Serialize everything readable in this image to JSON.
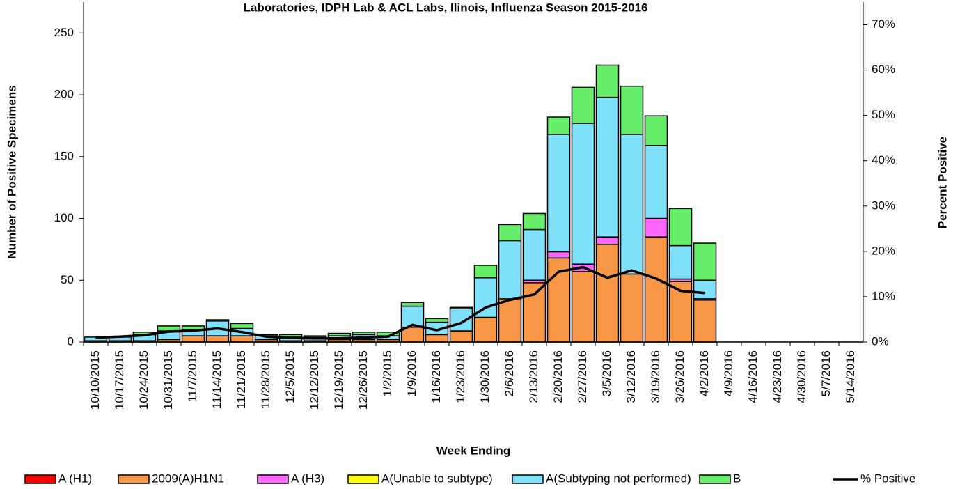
{
  "chart_data": {
    "type": "bar",
    "stacked": true,
    "title": "Laboratories, IDPH Lab & ACL Labs, Ilinois, Influenza Season 2015-2016",
    "x_label": "Week Ending",
    "y_label": "Number of  Positive Specimens",
    "y2_label": "Percent Positive",
    "categories": [
      "10/10/2015",
      "10/17/2015",
      "10/24/2015",
      "10/31/2015",
      "11/7/2015",
      "11/14/2015",
      "11/21/2015",
      "11/28/2015",
      "12/5/2015",
      "12/12/2015",
      "12/19/2015",
      "12/26/2015",
      "1/2/2015",
      "1/9/2016",
      "1/16/2016",
      "1/23/2016",
      "1/30/2016",
      "2/6/2016",
      "2/13/2016",
      "2/20/2016",
      "2/27/2016",
      "3/5/2016",
      "3/12/2016",
      "3/19/2016",
      "3/26/2016",
      "4/2/2016",
      "4/9/2016",
      "4/16/2016",
      "4/23/2016",
      "4/30/2016",
      "5/7/2016",
      "5/14/2016"
    ],
    "ylim": [
      0,
      275
    ],
    "yticks": [
      0,
      50,
      100,
      150,
      200,
      250
    ],
    "y2lim": [
      0,
      75
    ],
    "y2ticks": [
      {
        "value": 0,
        "label": "0%"
      },
      {
        "value": 10,
        "label": "10%"
      },
      {
        "value": 20,
        "label": "20%"
      },
      {
        "value": 30,
        "label": "30%"
      },
      {
        "value": 40,
        "label": "40%"
      },
      {
        "value": 50,
        "label": "50%"
      },
      {
        "value": 60,
        "label": "60%"
      },
      {
        "value": 70,
        "label": "70%"
      }
    ],
    "legend": "bottom",
    "series": [
      {
        "name": "A (H1)",
        "color": "#ff0000",
        "values": [
          0,
          0,
          0,
          0,
          0,
          0,
          0,
          0,
          0,
          0,
          0,
          0,
          0,
          0,
          0,
          0,
          0,
          0,
          0,
          0,
          0,
          0,
          0,
          0,
          0,
          0,
          0,
          0,
          0,
          0,
          0,
          0
        ]
      },
      {
        "name": "2009(A)H1N1",
        "color": "#f79646",
        "values": [
          1,
          1,
          1,
          2,
          5,
          5,
          5,
          2,
          1,
          1,
          2,
          2,
          2,
          12,
          6,
          9,
          20,
          35,
          48,
          68,
          57,
          79,
          55,
          85,
          49,
          34,
          0,
          0,
          0,
          0,
          0,
          0
        ]
      },
      {
        "name": "A (H3)",
        "color": "#ff66ff",
        "values": [
          0,
          0,
          0,
          0,
          0,
          0,
          0,
          0,
          0,
          0,
          0,
          0,
          0,
          0,
          0,
          0,
          0,
          0,
          2,
          5,
          6,
          6,
          0,
          15,
          2,
          1,
          0,
          0,
          0,
          0,
          0,
          0
        ]
      },
      {
        "name": "A(Unable to subtype)",
        "color": "#ffff00",
        "values": [
          0,
          0,
          0,
          0,
          0,
          0,
          0,
          0,
          0,
          0,
          0,
          0,
          0,
          0,
          0,
          0,
          0,
          0,
          0,
          0,
          0,
          0,
          0,
          0,
          0,
          0,
          0,
          0,
          0,
          0,
          0,
          0
        ]
      },
      {
        "name": "A(Subtyping not performed)",
        "color": "#7fe1fa",
        "values": [
          3,
          3,
          5,
          7,
          5,
          12,
          6,
          3,
          3,
          3,
          3,
          4,
          3,
          17,
          10,
          18,
          32,
          47,
          41,
          95,
          114,
          113,
          113,
          59,
          27,
          15,
          0,
          0,
          0,
          0,
          0,
          0
        ]
      },
      {
        "name": "B",
        "color": "#66ee6a",
        "values": [
          0,
          0,
          2,
          4,
          3,
          1,
          4,
          1,
          2,
          1,
          2,
          2,
          3,
          3,
          3,
          1,
          10,
          13,
          13,
          14,
          29,
          26,
          39,
          24,
          30,
          30,
          0,
          0,
          0,
          0,
          0,
          0
        ]
      },
      {
        "name": "% Positive",
        "color": "#000000",
        "type": "line",
        "axis": "y2",
        "values": [
          1.0,
          1.2,
          1.5,
          2.3,
          2.5,
          3.0,
          2.2,
          1.2,
          0.9,
          0.8,
          0.8,
          1.0,
          1.2,
          3.8,
          2.6,
          4.2,
          7.6,
          9.3,
          10.5,
          15.5,
          16.5,
          14.2,
          15.8,
          14.0,
          11.3,
          10.8,
          null,
          null,
          null,
          null,
          null,
          null
        ]
      }
    ]
  }
}
